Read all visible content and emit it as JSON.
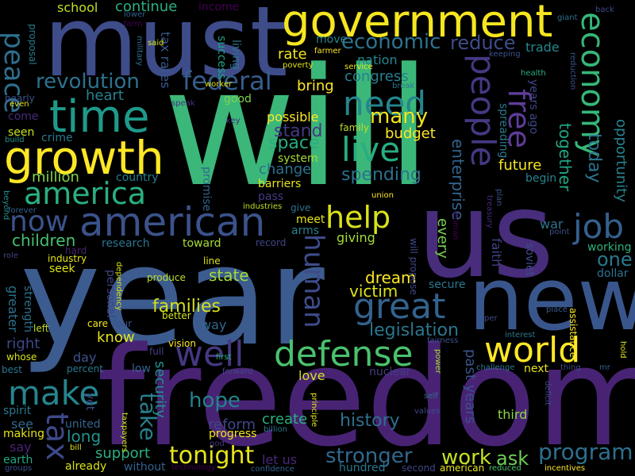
{
  "words": [
    {
      "text": "will",
      "color": "#3bb779"
    },
    {
      "text": "year",
      "color": "#3c5b8f"
    },
    {
      "text": "freedom",
      "color": "#482374"
    },
    {
      "text": "us",
      "color": "#472d7b"
    },
    {
      "text": "must",
      "color": "#3e4c8a"
    },
    {
      "text": "new",
      "color": "#39568c"
    },
    {
      "text": "government",
      "color": "#f6e620"
    },
    {
      "text": "time",
      "color": "#1f9a8a"
    },
    {
      "text": "growth",
      "color": "#fde725"
    },
    {
      "text": "world",
      "color": "#fde725"
    },
    {
      "text": "american",
      "color": "#3b528b"
    },
    {
      "text": "defense",
      "color": "#4ac16d"
    },
    {
      "text": "economy",
      "color": "#35b779"
    },
    {
      "text": "people",
      "color": "#443983"
    },
    {
      "text": "great",
      "color": "#33638d"
    },
    {
      "text": "america",
      "color": "#2ab07f"
    },
    {
      "text": "live",
      "color": "#27ad81"
    },
    {
      "text": "need",
      "color": "#25858e"
    },
    {
      "text": "well",
      "color": "#453882"
    },
    {
      "text": "job",
      "color": "#355f8d"
    },
    {
      "text": "make",
      "color": "#25858e"
    },
    {
      "text": "federal",
      "color": "#365d8d"
    },
    {
      "text": "revolution",
      "color": "#2c728e"
    },
    {
      "text": "help",
      "color": "#d8e219"
    },
    {
      "text": "free",
      "color": "#5e3c99"
    },
    {
      "text": "now",
      "color": "#3b528b"
    },
    {
      "text": "tax",
      "color": "#3e4989"
    },
    {
      "text": "human",
      "color": "#3e4c8a"
    },
    {
      "text": "peace",
      "color": "#2e6f8e"
    },
    {
      "text": "tonight",
      "color": "#e5e419"
    },
    {
      "text": "hope",
      "color": "#26828e"
    },
    {
      "text": "program",
      "color": "#2d708e"
    },
    {
      "text": "economic",
      "color": "#2c738e"
    },
    {
      "text": "many",
      "color": "#f1e51d"
    },
    {
      "text": "stronger",
      "color": "#31688e"
    },
    {
      "text": "work",
      "color": "#c5e021"
    },
    {
      "text": "take",
      "color": "#27808e"
    },
    {
      "text": "one",
      "color": "#2a788e"
    },
    {
      "text": "reduce",
      "color": "#3e4c8a"
    },
    {
      "text": "legislation",
      "color": "#2a768e"
    },
    {
      "text": "today",
      "color": "#2c738e"
    },
    {
      "text": "together",
      "color": "#21a685"
    },
    {
      "text": "opportunity",
      "color": "#26828e"
    },
    {
      "text": "enterprise",
      "color": "#33638d"
    },
    {
      "text": "spending",
      "color": "#2c728e"
    },
    {
      "text": "history",
      "color": "#2d708e"
    },
    {
      "text": "families",
      "color": "#d2e21b"
    },
    {
      "text": "state",
      "color": "#a0da39"
    },
    {
      "text": "children",
      "color": "#46c06f"
    },
    {
      "text": "dream",
      "color": "#fde725"
    },
    {
      "text": "victim",
      "color": "#dde318"
    },
    {
      "text": "space",
      "color": "#28ae80"
    },
    {
      "text": "stand",
      "color": "#453882"
    },
    {
      "text": "change",
      "color": "#2c718e"
    },
    {
      "text": "budget",
      "color": "#fde725"
    },
    {
      "text": "possible",
      "color": "#fde725"
    },
    {
      "text": "future",
      "color": "#f6e620"
    },
    {
      "text": "ask",
      "color": "#6ece58"
    },
    {
      "text": "support",
      "color": "#2ab07f"
    },
    {
      "text": "long",
      "color": "#21918c"
    },
    {
      "text": "third",
      "color": "#8ed645"
    },
    {
      "text": "create",
      "color": "#2ab07f"
    },
    {
      "text": "million",
      "color": "#84d44b"
    },
    {
      "text": "heart",
      "color": "#26828e"
    },
    {
      "text": "congress",
      "color": "#277f8e"
    },
    {
      "text": "nation",
      "color": "#24868e"
    },
    {
      "text": "rate",
      "color": "#f6e620"
    },
    {
      "text": "bring",
      "color": "#fde725"
    },
    {
      "text": "school",
      "color": "#c2df23"
    },
    {
      "text": "continue",
      "color": "#2ab07f"
    },
    {
      "text": "past years",
      "color": "#3b528b"
    },
    {
      "text": "security",
      "color": "#21918c"
    },
    {
      "text": "reform",
      "color": "#3f4788"
    },
    {
      "text": "progress",
      "color": "#f6e620"
    },
    {
      "text": "know",
      "color": "#e5e419"
    },
    {
      "text": "day",
      "color": "#3b528b"
    },
    {
      "text": "right",
      "color": "#3f4788"
    },
    {
      "text": "greater",
      "color": "#2c728e"
    },
    {
      "text": "make",
      "color": "#25858e"
    },
    {
      "text": "say",
      "color": "#482475"
    },
    {
      "text": "see",
      "color": "#31688e"
    },
    {
      "text": "making",
      "color": "#e5e419"
    },
    {
      "text": "spirit",
      "color": "#2a788e"
    },
    {
      "text": "earth",
      "color": "#22a884"
    },
    {
      "text": "united",
      "color": "#32658e"
    },
    {
      "text": "way",
      "color": "#31688e"
    },
    {
      "text": "love",
      "color": "#d0e11c"
    },
    {
      "text": "nuclear",
      "color": "#443a83"
    },
    {
      "text": "next",
      "color": "#e7e419"
    },
    {
      "text": "low",
      "color": "#34618d"
    },
    {
      "text": "secure",
      "color": "#2a788e"
    },
    {
      "text": "working",
      "color": "#2db27d"
    },
    {
      "text": "dollar",
      "color": "#2d708e"
    },
    {
      "text": "soviet",
      "color": "#3d4d8a"
    },
    {
      "text": "war",
      "color": "#2a768e"
    },
    {
      "text": "every",
      "color": "#7ad151"
    },
    {
      "text": "giving",
      "color": "#a5db36"
    },
    {
      "text": "seek",
      "color": "#dde318"
    },
    {
      "text": "toward",
      "color": "#a8db34"
    },
    {
      "text": "research",
      "color": "#2c738e"
    },
    {
      "text": "arms",
      "color": "#26828e"
    },
    {
      "text": "meet",
      "color": "#e2e418"
    },
    {
      "text": "pass",
      "color": "#443983"
    },
    {
      "text": "barriers",
      "color": "#e5e419"
    },
    {
      "text": "system",
      "color": "#a8db34"
    },
    {
      "text": "country",
      "color": "#26818e"
    },
    {
      "text": "crime",
      "color": "#2a788e"
    },
    {
      "text": "seen",
      "color": "#c8e020"
    },
    {
      "text": "come",
      "color": "#472a7a"
    },
    {
      "text": "nearly",
      "color": "#3b528b"
    },
    {
      "text": "family",
      "color": "#b8de29"
    },
    {
      "text": "good",
      "color": "#7fd34e"
    },
    {
      "text": "move",
      "color": "#26828e"
    },
    {
      "text": "trade",
      "color": "#24878e"
    },
    {
      "text": "proposal",
      "color": "#297b8e"
    },
    {
      "text": "tax rates",
      "color": "#38588c"
    },
    {
      "text": "success",
      "color": "#20a386"
    },
    {
      "text": "living",
      "color": "#2c738e"
    },
    {
      "text": "income",
      "color": "#440154"
    },
    {
      "text": "faith",
      "color": "#414287"
    },
    {
      "text": "begin",
      "color": "#25838e"
    },
    {
      "text": "spreading",
      "color": "#2a788e"
    },
    {
      "text": "years ago",
      "color": "#3f4889"
    },
    {
      "text": "promise",
      "color": "#32658e"
    },
    {
      "text": "industries",
      "color": "#c2df23"
    },
    {
      "text": "give",
      "color": "#2d708e"
    },
    {
      "text": "record",
      "color": "#414487"
    },
    {
      "text": "line",
      "color": "#dde318"
    },
    {
      "text": "industry",
      "color": "#e5e419"
    },
    {
      "text": "hard",
      "color": "#482071"
    },
    {
      "text": "produce",
      "color": "#bddf26"
    },
    {
      "text": "personal",
      "color": "#414487"
    },
    {
      "text": "strength",
      "color": "#2c718e"
    },
    {
      "text": "left",
      "color": "#c2df23"
    },
    {
      "text": "whose",
      "color": "#d5e21a"
    },
    {
      "text": "care",
      "color": "#f4e61e"
    },
    {
      "text": "four",
      "color": "#3b528b"
    },
    {
      "text": "better",
      "color": "#d5e21a"
    },
    {
      "text": "vision",
      "color": "#fde725"
    },
    {
      "text": "full",
      "color": "#433e85"
    },
    {
      "text": "percent",
      "color": "#2a788e"
    },
    {
      "text": "best",
      "color": "#2a768e"
    },
    {
      "text": "yet",
      "color": "#3e4a89"
    },
    {
      "text": "bill",
      "color": "#dde318"
    },
    {
      "text": "already",
      "color": "#d8e219"
    },
    {
      "text": "without",
      "color": "#34608d"
    },
    {
      "text": "technology",
      "color": "#440154"
    },
    {
      "text": "confidence",
      "color": "#34608d"
    },
    {
      "text": "let us",
      "color": "#482878"
    },
    {
      "text": "hundred",
      "color": "#2a768e"
    },
    {
      "text": "second",
      "color": "#3f4788"
    },
    {
      "text": "american",
      "color": "#eae51a"
    },
    {
      "text": "reduced",
      "color": "#4ac16d"
    },
    {
      "text": "incentives",
      "color": "#fde725"
    },
    {
      "text": "god",
      "color": "#46337e"
    },
    {
      "text": "billion",
      "color": "#2a788e"
    },
    {
      "text": "principle",
      "color": "#e5e419"
    },
    {
      "text": "groups",
      "color": "#3b528b"
    },
    {
      "text": "taxpayers",
      "color": "#d2e21b"
    },
    {
      "text": "first",
      "color": "#2ab07f"
    },
    {
      "text": "forward",
      "color": "#3f4788"
    },
    {
      "text": "challenge",
      "color": "#2a768e"
    },
    {
      "text": "thing",
      "color": "#3e4989"
    },
    {
      "text": "mr",
      "color": "#34608d"
    },
    {
      "text": "power",
      "color": "#a8db34"
    },
    {
      "text": "self",
      "color": "#2d708e"
    },
    {
      "text": "values",
      "color": "#3e4989"
    },
    {
      "text": "fairness",
      "color": "#3b528b"
    },
    {
      "text": "interest",
      "color": "#2a788e"
    },
    {
      "text": "deficit",
      "color": "#3e4989"
    },
    {
      "text": "place",
      "color": "#38588c"
    },
    {
      "text": "hold",
      "color": "#dde318"
    },
    {
      "text": "assistance",
      "color": "#fde725"
    },
    {
      "text": "per",
      "color": "#3e4989"
    },
    {
      "text": "point",
      "color": "#3b528b"
    },
    {
      "text": "plan",
      "color": "#3b528b"
    },
    {
      "text": "treasury",
      "color": "#482878"
    },
    {
      "text": "woman",
      "color": "#440154"
    },
    {
      "text": "union",
      "color": "#fde725"
    },
    {
      "text": "will propose",
      "color": "#3e4989"
    },
    {
      "text": "dependency",
      "color": "#d8e219"
    },
    {
      "text": "speak",
      "color": "#46337e"
    },
    {
      "text": "key",
      "color": "#472c7a"
    },
    {
      "text": "forever",
      "color": "#34608d"
    },
    {
      "text": "beyond",
      "color": "#21918c"
    },
    {
      "text": "role",
      "color": "#414487"
    },
    {
      "text": "build",
      "color": "#21918c"
    },
    {
      "text": "even",
      "color": "#e5e419"
    },
    {
      "text": "lower",
      "color": "#34608d"
    },
    {
      "text": "farm",
      "color": "#440154"
    },
    {
      "text": "military",
      "color": "#2c728e"
    },
    {
      "text": "said",
      "color": "#dde318"
    },
    {
      "text": "worker",
      "color": "#e2e418"
    },
    {
      "text": "poverty",
      "color": "#e5e419"
    },
    {
      "text": "farmer",
      "color": "#fde725"
    },
    {
      "text": "service",
      "color": "#e5e419"
    },
    {
      "text": "break",
      "color": "#2a768e"
    },
    {
      "text": "keeping",
      "color": "#3b528b"
    },
    {
      "text": "health",
      "color": "#2ab07f"
    },
    {
      "text": "giant",
      "color": "#2d708e"
    },
    {
      "text": "back",
      "color": "#3e4989"
    },
    {
      "text": "reduction",
      "color": "#3b528b"
    }
  ]
}
